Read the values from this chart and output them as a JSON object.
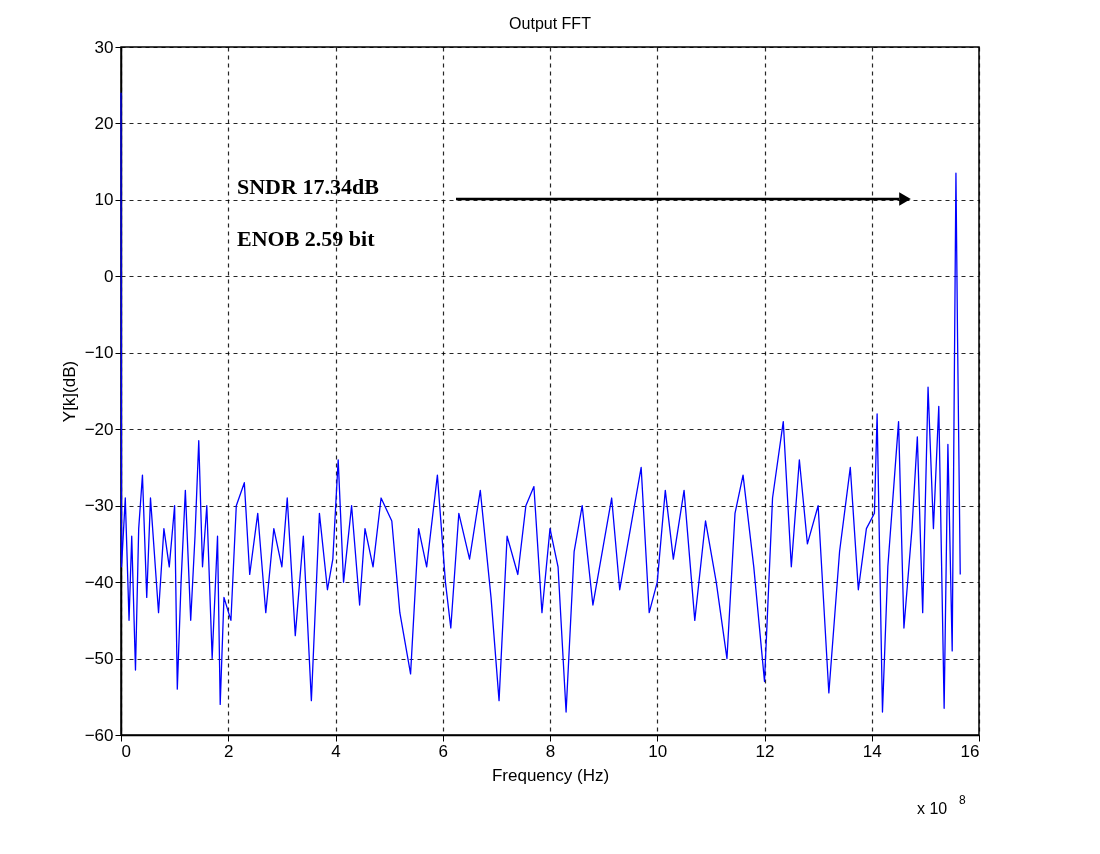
{
  "chart_data": {
    "type": "line",
    "title": "Output FFT",
    "xlabel": "Frequency (Hz)",
    "ylabel": "Y[k](dB)",
    "annotations": [
      "SNDR 17.34dB",
      "ENOB 2.59 bit",
      "x 10$^{8}$"
    ],
    "xlim": [
      0,
      16
    ],
    "xticks": [
      0,
      2,
      4,
      6,
      8,
      10,
      12,
      14,
      16
    ],
    "ylim": [
      -60,
      30
    ],
    "yticks": [
      -60,
      -50,
      -40,
      -30,
      -20,
      -10,
      0,
      10,
      20,
      30
    ],
    "grid": true,
    "marker": "none",
    "line_style": "solid",
    "series": [
      {
        "color": "#0000ff",
        "x": [
          0,
          0.01,
          0.08,
          0.15,
          0.2,
          0.27,
          0.33,
          0.4,
          0.48,
          0.55,
          0.62,
          0.7,
          0.8,
          0.9,
          1.0,
          1.05,
          1.12,
          1.2,
          1.3,
          1.38,
          1.45,
          1.52,
          1.6,
          1.7,
          1.8,
          1.85,
          1.92,
          2.05,
          2.15,
          2.3,
          2.4,
          2.55,
          2.7,
          2.85,
          3.0,
          3.1,
          3.25,
          3.4,
          3.55,
          3.7,
          3.85,
          3.95,
          4.05,
          4.15,
          4.3,
          4.45,
          4.55,
          4.7,
          4.85,
          5.05,
          5.2,
          5.4,
          5.55,
          5.7,
          5.9,
          6.05,
          6.15,
          6.3,
          6.5,
          6.7,
          6.9,
          7.05,
          7.2,
          7.4,
          7.55,
          7.7,
          7.85,
          8.0,
          8.15,
          8.3,
          8.45,
          8.6,
          8.8,
          9.0,
          9.15,
          9.3,
          9.5,
          9.7,
          9.85,
          10.0,
          10.15,
          10.3,
          10.5,
          10.7,
          10.9,
          11.1,
          11.3,
          11.45,
          11.6,
          11.8,
          12.0,
          12.15,
          12.35,
          12.5,
          12.65,
          12.8,
          13.0,
          13.2,
          13.4,
          13.6,
          13.75,
          13.9,
          14.05,
          14.1,
          14.2,
          14.3,
          14.5,
          14.6,
          14.75,
          14.85,
          14.95,
          15.05,
          15.15,
          15.25,
          15.35,
          15.42,
          15.5,
          15.57,
          15.6,
          15.65
        ],
        "values": [
          24,
          -38,
          -29,
          -45,
          -34,
          -51.5,
          -33,
          -26,
          -42,
          -29,
          -36,
          -44,
          -33,
          -38,
          -30,
          -54,
          -40,
          -28,
          -45,
          -34,
          -21.5,
          -38,
          -30,
          -50,
          -34,
          -56,
          -42,
          -45,
          -30,
          -27,
          -39,
          -31,
          -44,
          -33,
          -38,
          -29,
          -47,
          -34,
          -55.5,
          -31,
          -41,
          -37,
          -24,
          -40,
          -30,
          -43,
          -33,
          -38,
          -29,
          -32,
          -44,
          -52,
          -33,
          -38,
          -26,
          -40,
          -46,
          -31,
          -37,
          -28,
          -42,
          -55.5,
          -34,
          -39,
          -30,
          -27.5,
          -44,
          -33,
          -38,
          -57,
          -36,
          -30,
          -43,
          -35,
          -29,
          -41,
          -33,
          -25,
          -44,
          -40,
          -28,
          -37,
          -28,
          -45,
          -32,
          -40,
          -50,
          -31,
          -26,
          -38,
          -53,
          -29,
          -19,
          -38,
          -24,
          -35,
          -30,
          -54.5,
          -36,
          -25,
          -41,
          -33,
          -31,
          -18,
          -57,
          -38,
          -19,
          -46,
          -33,
          -21,
          -44,
          -14.5,
          -33,
          -17,
          -56.5,
          -22,
          -49,
          13.5,
          -8,
          -39
        ]
      }
    ]
  }
}
